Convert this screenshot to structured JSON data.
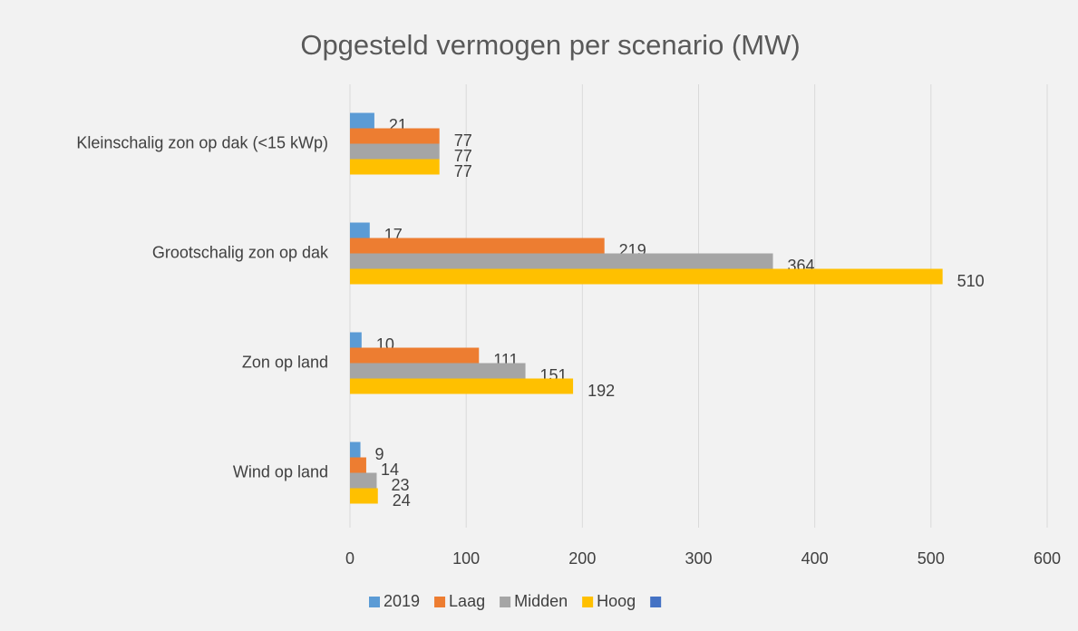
{
  "chart_data": {
    "type": "hbar",
    "title": "Opgesteld vermogen per scenario (MW)",
    "categories": [
      "Kleinschalig zon op dak (<15 kWp)",
      "Grootschalig zon op dak",
      "Zon op land",
      "Wind op land"
    ],
    "series": [
      {
        "name": "2019",
        "color": "#5b9bd5",
        "values": [
          21,
          17,
          10,
          9
        ]
      },
      {
        "name": "Laag",
        "color": "#ed7d31",
        "values": [
          77,
          219,
          111,
          14
        ]
      },
      {
        "name": "Midden",
        "color": "#a5a5a5",
        "values": [
          77,
          364,
          151,
          23
        ]
      },
      {
        "name": "Hoog",
        "color": "#ffc000",
        "values": [
          77,
          510,
          192,
          24
        ]
      }
    ],
    "xlim": [
      0,
      600
    ],
    "xticks": [
      0,
      100,
      200,
      300,
      400,
      500,
      600
    ],
    "grid": true,
    "legend": "bottom"
  }
}
